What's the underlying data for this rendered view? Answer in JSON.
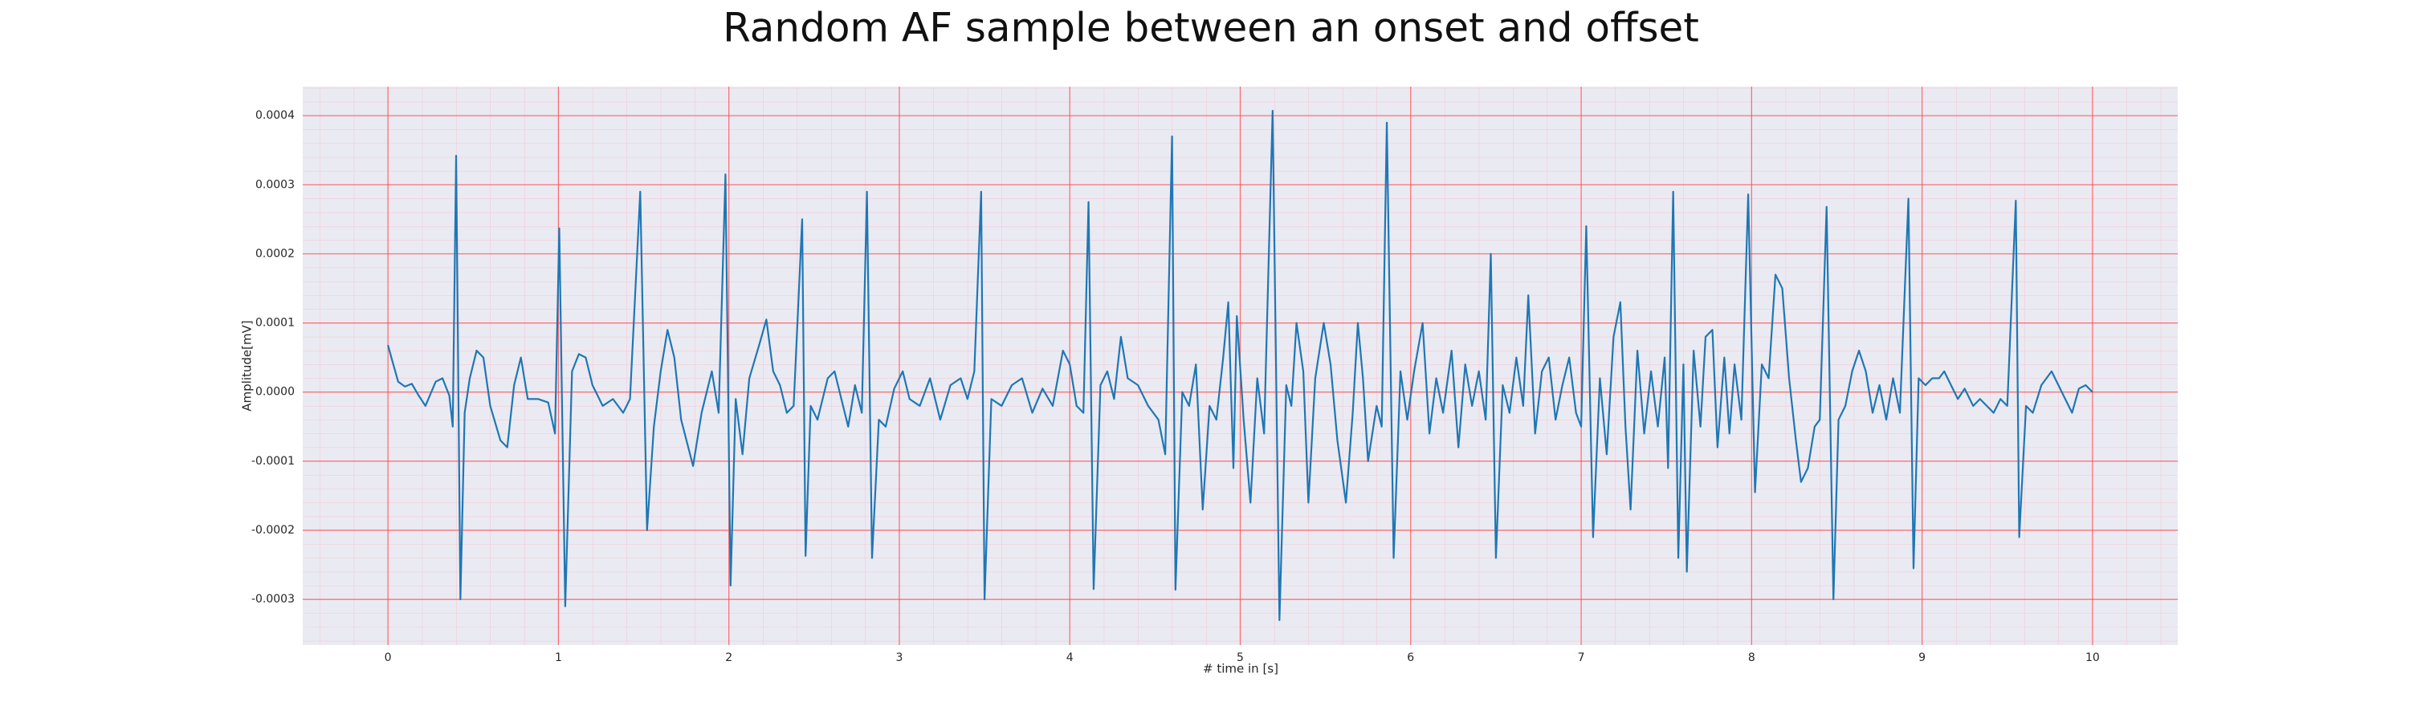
{
  "chart_data": {
    "type": "line",
    "title": "Random AF sample between an onset and offset",
    "xlabel": "# time in [s]",
    "ylabel": "Amplitude[mV]",
    "xlim": [
      -0.5,
      10.5
    ],
    "ylim": [
      -0.000366,
      0.000442
    ],
    "xticks": [
      0,
      1,
      2,
      3,
      4,
      5,
      6,
      7,
      8,
      9,
      10
    ],
    "yticks": [
      -0.0003,
      -0.0002,
      -0.0001,
      {
        "value": 0,
        "label": "0.0000"
      },
      0.0001,
      0.0002,
      0.0003,
      0.0004
    ],
    "grid": true,
    "minor_grid": true,
    "background": "#eaeaf2",
    "grid_color": "#ff4d4d",
    "minor_grid_color": "#f7c4d0",
    "x": [
      0.0,
      0.02,
      0.06,
      0.1,
      0.14,
      0.18,
      0.22,
      0.28,
      0.32,
      0.36,
      0.38,
      0.4,
      0.425,
      0.45,
      0.48,
      0.52,
      0.56,
      0.6,
      0.66,
      0.7,
      0.74,
      0.78,
      0.82,
      0.88,
      0.94,
      0.98,
      1.005,
      1.04,
      1.08,
      1.12,
      1.16,
      1.2,
      1.26,
      1.32,
      1.38,
      1.42,
      1.48,
      1.52,
      1.56,
      1.6,
      1.64,
      1.68,
      1.72,
      1.79,
      1.84,
      1.9,
      1.94,
      1.98,
      2.01,
      2.04,
      2.08,
      2.12,
      2.18,
      2.22,
      2.26,
      2.3,
      2.34,
      2.38,
      2.43,
      2.45,
      2.48,
      2.52,
      2.58,
      2.62,
      2.66,
      2.7,
      2.74,
      2.78,
      2.81,
      2.84,
      2.88,
      2.92,
      2.97,
      3.02,
      3.06,
      3.12,
      3.18,
      3.24,
      3.3,
      3.36,
      3.4,
      3.44,
      3.48,
      3.5,
      3.54,
      3.6,
      3.66,
      3.72,
      3.78,
      3.84,
      3.9,
      3.96,
      4.0,
      4.04,
      4.08,
      4.11,
      4.14,
      4.18,
      4.22,
      4.26,
      4.3,
      4.34,
      4.4,
      4.46,
      4.52,
      4.56,
      4.6,
      4.62,
      4.66,
      4.7,
      4.74,
      4.78,
      4.82,
      4.86,
      4.9,
      4.93,
      4.96,
      4.98,
      5.02,
      5.06,
      5.1,
      5.14,
      5.19,
      5.23,
      5.27,
      5.3,
      5.33,
      5.37,
      5.4,
      5.44,
      5.49,
      5.53,
      5.57,
      5.62,
      5.66,
      5.69,
      5.72,
      5.75,
      5.8,
      5.83,
      5.86,
      5.9,
      5.94,
      5.98,
      6.02,
      6.07,
      6.11,
      6.15,
      6.19,
      6.24,
      6.28,
      6.32,
      6.36,
      6.4,
      6.44,
      6.47,
      6.5,
      6.54,
      6.58,
      6.62,
      6.66,
      6.69,
      6.73,
      6.77,
      6.81,
      6.85,
      6.89,
      6.93,
      6.97,
      7.0,
      7.03,
      7.07,
      7.11,
      7.15,
      7.19,
      7.23,
      7.26,
      7.29,
      7.33,
      7.37,
      7.41,
      7.45,
      7.49,
      7.51,
      7.54,
      7.57,
      7.6,
      7.62,
      7.66,
      7.7,
      7.73,
      7.77,
      7.8,
      7.84,
      7.87,
      7.9,
      7.94,
      7.98,
      8.02,
      8.06,
      8.1,
      8.14,
      8.18,
      8.22,
      8.26,
      8.29,
      8.33,
      8.37,
      8.4,
      8.44,
      8.48,
      8.51,
      8.55,
      8.59,
      8.63,
      8.67,
      8.71,
      8.75,
      8.79,
      8.83,
      8.87,
      8.92,
      8.95,
      8.98,
      9.02,
      9.06,
      9.1,
      9.13,
      9.17,
      9.21,
      9.25,
      9.3,
      9.34,
      9.38,
      9.42,
      9.46,
      9.5,
      9.55,
      9.57,
      9.61,
      9.65,
      9.7,
      9.76,
      9.8,
      9.84,
      9.88,
      9.92,
      9.96,
      10.0
    ],
    "series": [
      {
        "color": "#1f77b4",
        "values": [
          6.8e-05,
          5e-05,
          1.5e-05,
          8e-06,
          1.2e-05,
          -5e-06,
          -2e-05,
          1.5e-05,
          2e-05,
          -5e-06,
          -5e-05,
          0.000342,
          -0.0003,
          -3e-05,
          2e-05,
          6e-05,
          5e-05,
          -2e-05,
          -7e-05,
          -8e-05,
          1e-05,
          5e-05,
          -1e-05,
          -1e-05,
          -1.5e-05,
          -6e-05,
          0.000237,
          -0.00031,
          3e-05,
          5.5e-05,
          5e-05,
          1e-05,
          -2e-05,
          -1e-05,
          -3e-05,
          -1e-05,
          0.00029,
          -0.0002,
          -5e-05,
          3e-05,
          9e-05,
          5e-05,
          -4e-05,
          -0.000107,
          -3e-05,
          3e-05,
          -3e-05,
          0.000315,
          -0.00028,
          -1e-05,
          -9e-05,
          2e-05,
          7e-05,
          0.000105,
          3e-05,
          1e-05,
          -3e-05,
          -2e-05,
          0.00025,
          -0.000237,
          -2e-05,
          -4e-05,
          2e-05,
          3e-05,
          -1e-05,
          -5e-05,
          1e-05,
          -3e-05,
          0.00029,
          -0.00024,
          -4e-05,
          -5e-05,
          5e-06,
          3e-05,
          -1e-05,
          -2e-05,
          2e-05,
          -4e-05,
          1e-05,
          2e-05,
          -1e-05,
          3e-05,
          0.00029,
          -0.0003,
          -1e-05,
          -2e-05,
          1e-05,
          2e-05,
          -3e-05,
          5e-06,
          -2e-05,
          6e-05,
          4e-05,
          -2e-05,
          -3e-05,
          0.000275,
          -0.000285,
          1e-05,
          3e-05,
          -1e-05,
          8e-05,
          2e-05,
          1e-05,
          -2e-05,
          -4e-05,
          -9e-05,
          0.00037,
          -0.000286,
          0.0,
          -2e-05,
          4e-05,
          -0.00017,
          -2e-05,
          -4e-05,
          5e-05,
          0.00013,
          -0.00011,
          0.00011,
          -4e-05,
          -0.00016,
          2e-05,
          -6e-05,
          0.000407,
          -0.00033,
          1e-05,
          -2e-05,
          0.0001,
          3e-05,
          -0.00016,
          2e-05,
          0.0001,
          4e-05,
          -7e-05,
          -0.00016,
          -3e-05,
          0.0001,
          2e-05,
          -0.0001,
          -2e-05,
          -5e-05,
          0.00039,
          -0.00024,
          3e-05,
          -4e-05,
          3e-05,
          0.0001,
          -6e-05,
          2e-05,
          -3e-05,
          6e-05,
          -8e-05,
          4e-05,
          -2e-05,
          3e-05,
          -4e-05,
          0.0002,
          -0.00024,
          1e-05,
          -3e-05,
          5e-05,
          -2e-05,
          0.00014,
          -6e-05,
          3e-05,
          5e-05,
          -4e-05,
          1e-05,
          5e-05,
          -3e-05,
          -5e-05,
          0.00024,
          -0.00021,
          2e-05,
          -9e-05,
          8e-05,
          0.00013,
          -5e-05,
          -0.00017,
          6e-05,
          -6e-05,
          3e-05,
          -5e-05,
          5e-05,
          -0.00011,
          0.00029,
          -0.00024,
          4e-05,
          -0.00026,
          6e-05,
          -5e-05,
          8e-05,
          9e-05,
          -8e-05,
          5e-05,
          -6e-05,
          4e-05,
          -4e-05,
          0.000286,
          -0.000145,
          4e-05,
          2e-05,
          0.00017,
          0.00015,
          2e-05,
          -7e-05,
          -0.00013,
          -0.00011,
          -5e-05,
          -4e-05,
          0.000268,
          -0.0003,
          -4e-05,
          -2e-05,
          3e-05,
          6e-05,
          3e-05,
          -3e-05,
          1e-05,
          -4e-05,
          2e-05,
          -3e-05,
          0.00028,
          -0.000255,
          2e-05,
          1e-05,
          2e-05,
          2e-05,
          3e-05,
          1e-05,
          -1e-05,
          5e-06,
          -2e-05,
          -1e-05,
          -2e-05,
          -3e-05,
          -1e-05,
          -2e-05,
          0.000277,
          -0.00021,
          -2e-05,
          -3e-05,
          1e-05,
          3e-05,
          1e-05,
          -1e-05,
          -3e-05,
          5e-06,
          1e-05,
          0.0
        ]
      }
    ]
  }
}
